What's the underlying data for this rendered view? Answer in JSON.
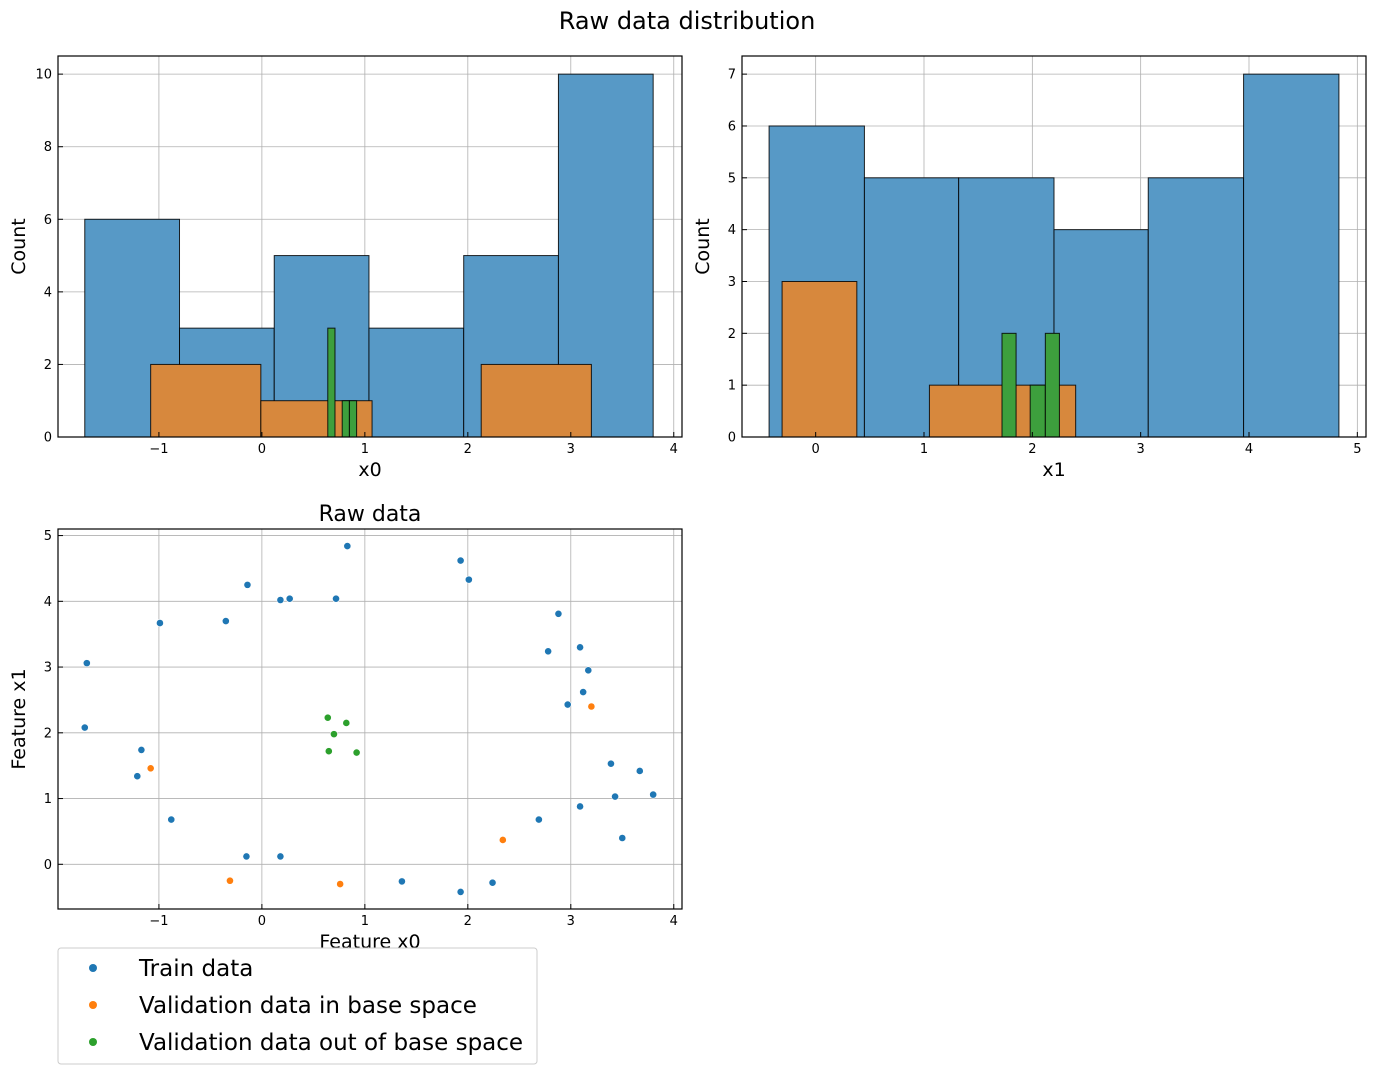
{
  "figure": {
    "suptitle": "Raw data distribution"
  },
  "colors": {
    "train": "#1f77b4",
    "val_in": "#ff7f0e",
    "val_out": "#2ca02c"
  },
  "chart_data": [
    {
      "type": "bar",
      "title": "",
      "xlabel": "x0",
      "ylabel": "Count",
      "xlim": [
        -1.98,
        4.08
      ],
      "ylim": [
        0,
        10.5
      ],
      "xticks": [
        -1,
        0,
        1,
        2,
        3,
        4
      ],
      "yticks": [
        0,
        2,
        4,
        6,
        8,
        10
      ],
      "grid": true,
      "series": [
        {
          "color": "train",
          "bins": [
            [
              -1.72,
              -0.8,
              6
            ],
            [
              -0.8,
              0.12,
              3
            ],
            [
              0.12,
              1.04,
              5
            ],
            [
              1.04,
              1.96,
              3
            ],
            [
              1.96,
              2.88,
              5
            ],
            [
              2.88,
              3.8,
              10
            ]
          ]
        },
        {
          "color": "val_in",
          "bins": [
            [
              -1.08,
              -0.01,
              2
            ],
            [
              -0.01,
              1.07,
              1
            ],
            [
              2.13,
              3.2,
              2
            ]
          ]
        },
        {
          "color": "val_out",
          "bins": [
            [
              0.64,
              0.71,
              3
            ],
            [
              0.78,
              0.85,
              1
            ],
            [
              0.85,
              0.92,
              1
            ]
          ]
        }
      ]
    },
    {
      "type": "bar",
      "title": "",
      "xlabel": "x1",
      "ylabel": "Count",
      "xlim": [
        -0.68,
        5.08
      ],
      "ylim": [
        0,
        7.35
      ],
      "xticks": [
        0,
        1,
        2,
        3,
        4,
        5
      ],
      "yticks": [
        0,
        1,
        2,
        3,
        4,
        5,
        6,
        7
      ],
      "grid": true,
      "series": [
        {
          "color": "train",
          "bins": [
            [
              -0.43,
              0.45,
              6
            ],
            [
              0.45,
              1.32,
              5
            ],
            [
              1.32,
              2.2,
              5
            ],
            [
              2.2,
              3.07,
              4
            ],
            [
              3.07,
              3.95,
              5
            ],
            [
              3.95,
              4.83,
              7
            ]
          ]
        },
        {
          "color": "val_in",
          "bins": [
            [
              -0.31,
              0.38,
              3
            ],
            [
              1.05,
              1.73,
              1
            ],
            [
              1.73,
              2.4,
              1
            ]
          ]
        },
        {
          "color": "val_out",
          "bins": [
            [
              1.72,
              1.85,
              2
            ],
            [
              1.85,
              1.98,
              0
            ],
            [
              1.98,
              2.12,
              1
            ],
            [
              2.12,
              2.25,
              2
            ]
          ]
        }
      ]
    },
    {
      "type": "scatter",
      "title": "Raw data",
      "xlabel": "Feature x0",
      "ylabel": "Feature x1",
      "xlim": [
        -1.98,
        4.08
      ],
      "ylim": [
        -0.68,
        5.1
      ],
      "xticks": [
        -1,
        0,
        1,
        2,
        3,
        4
      ],
      "yticks": [
        0,
        1,
        2,
        3,
        4,
        5
      ],
      "grid": true,
      "series": [
        {
          "name": "Train data",
          "color": "train",
          "points": [
            [
              -1.7,
              3.06
            ],
            [
              -1.72,
              2.08
            ],
            [
              -1.17,
              1.74
            ],
            [
              -1.21,
              1.34
            ],
            [
              -0.88,
              0.68
            ],
            [
              -0.99,
              3.67
            ],
            [
              -0.35,
              3.7
            ],
            [
              -0.14,
              4.25
            ],
            [
              -0.15,
              0.12
            ],
            [
              0.18,
              0.12
            ],
            [
              0.18,
              4.02
            ],
            [
              0.27,
              4.04
            ],
            [
              0.72,
              4.04
            ],
            [
              0.83,
              4.84
            ],
            [
              1.36,
              -0.26
            ],
            [
              1.93,
              -0.42
            ],
            [
              1.93,
              4.62
            ],
            [
              2.01,
              4.33
            ],
            [
              2.24,
              -0.28
            ],
            [
              2.69,
              0.68
            ],
            [
              2.78,
              3.24
            ],
            [
              2.88,
              3.81
            ],
            [
              2.97,
              2.43
            ],
            [
              3.09,
              3.3
            ],
            [
              3.09,
              0.88
            ],
            [
              3.12,
              2.62
            ],
            [
              3.17,
              2.95
            ],
            [
              3.39,
              1.53
            ],
            [
              3.43,
              1.03
            ],
            [
              3.5,
              0.4
            ],
            [
              3.67,
              1.42
            ],
            [
              3.8,
              1.06
            ]
          ]
        },
        {
          "name": "Validation data in base space",
          "color": "val_in",
          "points": [
            [
              -1.08,
              1.46
            ],
            [
              -0.31,
              -0.25
            ],
            [
              0.76,
              -0.3
            ],
            [
              2.34,
              0.37
            ],
            [
              3.2,
              2.4
            ]
          ]
        },
        {
          "name": "Validation data out of base space",
          "color": "val_out",
          "points": [
            [
              0.64,
              2.23
            ],
            [
              0.7,
              1.98
            ],
            [
              0.82,
              2.15
            ],
            [
              0.65,
              1.72
            ],
            [
              0.92,
              1.7
            ]
          ]
        }
      ]
    }
  ],
  "legend": {
    "items": [
      {
        "label": "Train data",
        "color": "train"
      },
      {
        "label": "Validation data in base space",
        "color": "val_in"
      },
      {
        "label": "Validation data out of base space",
        "color": "val_out"
      }
    ]
  }
}
